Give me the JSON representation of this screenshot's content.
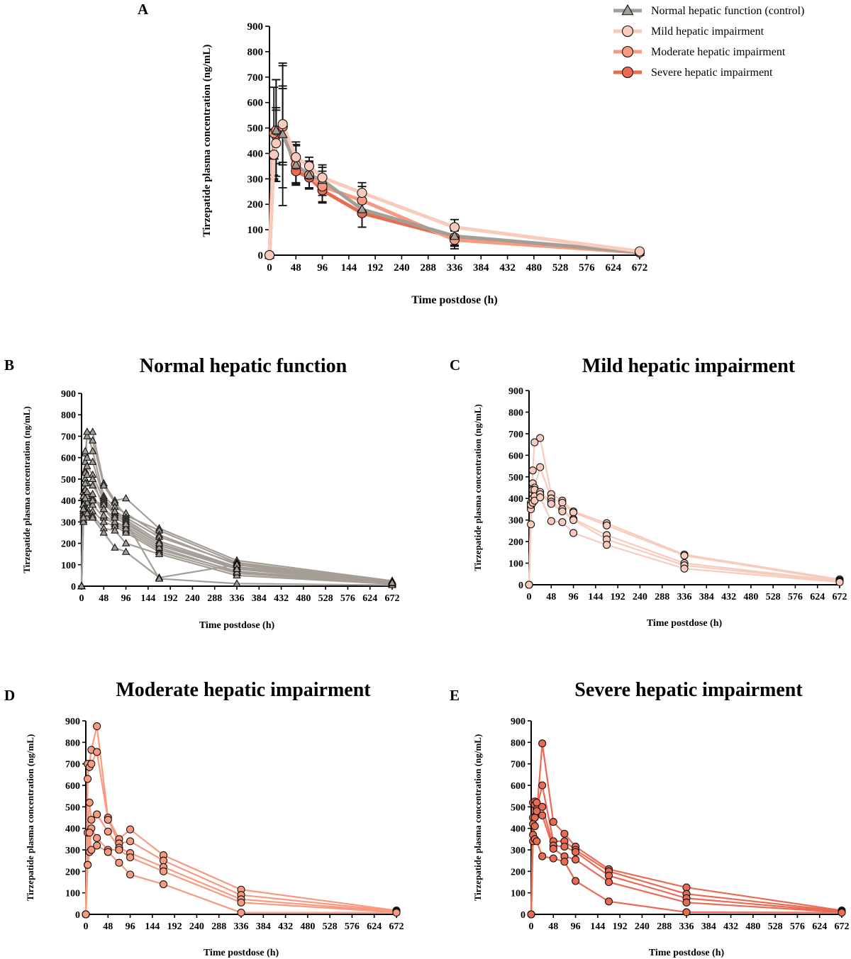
{
  "figure": {
    "colors": {
      "normal": "#a59e97",
      "mild": "#f9cbbd",
      "moderate": "#f79a80",
      "severe": "#ea6b54"
    }
  },
  "chart_data": [
    {
      "letter": "A",
      "type": "line",
      "title": "",
      "xlabel": "Time postdose (h)",
      "ylabel": "Tirzepatide plasma concentration (ng/mL)",
      "xlim": [
        0,
        672
      ],
      "ylim": [
        0,
        900
      ],
      "xticks": [
        0,
        48,
        96,
        144,
        192,
        240,
        288,
        336,
        384,
        432,
        480,
        528,
        576,
        624,
        672
      ],
      "yticks": [
        0,
        100,
        200,
        300,
        400,
        500,
        600,
        700,
        800,
        900
      ],
      "grid": false,
      "legend": "top-right",
      "series": [
        {
          "name": "Normal hepatic function (control)",
          "key": "normal",
          "marker": "triangle",
          "x": [
            0,
            8,
            12,
            24,
            48,
            72,
            96,
            168,
            336,
            672
          ],
          "y": [
            0,
            390,
            490,
            475,
            355,
            315,
            295,
            180,
            75,
            12
          ],
          "err": [
            0,
            90,
            200,
            280,
            80,
            55,
            60,
            70,
            40,
            4
          ]
        },
        {
          "name": "Mild hepatic impairment",
          "key": "mild",
          "marker": "circle",
          "x": [
            0,
            8,
            12,
            24,
            48,
            72,
            96,
            168,
            336,
            672
          ],
          "y": [
            0,
            395,
            440,
            515,
            385,
            350,
            305,
            245,
            110,
            15
          ],
          "err": [
            0,
            100,
            130,
            150,
            60,
            35,
            40,
            40,
            30,
            5
          ]
        },
        {
          "name": "Moderate hepatic impairment",
          "key": "moderate",
          "marker": "circle",
          "x": [
            0,
            8,
            12,
            24,
            48,
            72,
            96,
            168,
            336,
            672
          ],
          "y": [
            0,
            480,
            490,
            505,
            355,
            315,
            270,
            215,
            60,
            10
          ],
          "err": [
            0,
            180,
            200,
            240,
            75,
            50,
            60,
            55,
            35,
            4
          ]
        },
        {
          "name": "Severe hepatic impairment",
          "key": "severe",
          "marker": "circle",
          "x": [
            0,
            8,
            12,
            24,
            48,
            72,
            96,
            168,
            336,
            672
          ],
          "y": [
            0,
            395,
            470,
            505,
            330,
            305,
            255,
            165,
            70,
            10
          ],
          "err": [
            0,
            80,
            110,
            150,
            45,
            40,
            50,
            55,
            30,
            4
          ]
        }
      ]
    },
    {
      "letter": "B",
      "type": "line",
      "title": "Normal hepatic function",
      "xlabel": "Time postdose (h)",
      "ylabel": "Tirzepatide plasma concentration (ng/mL)",
      "xlim": [
        0,
        672
      ],
      "ylim": [
        0,
        900
      ],
      "xticks": [
        0,
        48,
        96,
        144,
        192,
        240,
        288,
        336,
        384,
        432,
        480,
        528,
        576,
        624,
        672
      ],
      "yticks": [
        0,
        100,
        200,
        300,
        400,
        500,
        600,
        700,
        800,
        900
      ],
      "grid": false,
      "color_key": "normal",
      "marker": "triangle",
      "x": [
        0,
        4,
        8,
        12,
        24,
        48,
        72,
        96,
        168,
        336,
        672
      ],
      "subjects": [
        [
          0,
          300,
          540,
          720,
          720,
          480,
          400,
          410,
          270,
          120,
          25
        ],
        [
          0,
          330,
          620,
          700,
          680,
          470,
          390,
          330,
          260,
          110,
          22
        ],
        [
          0,
          380,
          580,
          720,
          630,
          420,
          370,
          340,
          240,
          100,
          20
        ],
        [
          0,
          440,
          630,
          600,
          580,
          410,
          350,
          320,
          230,
          105,
          20
        ],
        [
          0,
          360,
          530,
          560,
          520,
          400,
          340,
          310,
          210,
          90,
          18
        ],
        [
          0,
          420,
          500,
          480,
          470,
          390,
          330,
          300,
          200,
          85,
          15
        ],
        [
          0,
          350,
          450,
          420,
          410,
          360,
          300,
          280,
          190,
          80,
          12
        ],
        [
          0,
          300,
          400,
          390,
          380,
          320,
          290,
          260,
          170,
          70,
          10
        ],
        [
          0,
          380,
          370,
          360,
          350,
          300,
          280,
          250,
          160,
          60,
          12
        ],
        [
          0,
          340,
          360,
          340,
          330,
          270,
          260,
          200,
          150,
          50,
          10
        ],
        [
          0,
          310,
          350,
          320,
          320,
          250,
          180,
          160,
          40,
          100,
          8
        ],
        [
          0,
          300,
          340,
          340,
          400,
          380,
          350,
          300,
          35,
          12,
          5
        ],
        [
          0,
          320,
          410,
          440,
          430,
          330,
          300,
          270,
          180,
          65,
          14
        ],
        [
          0,
          360,
          480,
          520,
          500,
          360,
          320,
          290,
          200,
          80,
          16
        ]
      ]
    },
    {
      "letter": "C",
      "type": "line",
      "title": "Mild hepatic impairment",
      "xlabel": "Time postdose (h)",
      "ylabel": "Tirzepatide plasma concentration (ng/mL)",
      "xlim": [
        0,
        672
      ],
      "ylim": [
        0,
        900
      ],
      "xticks": [
        0,
        48,
        96,
        144,
        192,
        240,
        288,
        336,
        384,
        432,
        480,
        528,
        576,
        624,
        672
      ],
      "yticks": [
        0,
        100,
        200,
        300,
        400,
        500,
        600,
        700,
        800,
        900
      ],
      "grid": false,
      "color_key": "mild",
      "marker": "circle",
      "x": [
        0,
        4,
        8,
        12,
        24,
        48,
        72,
        96,
        168,
        336,
        672
      ],
      "subjects": [
        [
          0,
          280,
          530,
          660,
          680,
          420,
          390,
          340,
          285,
          140,
          25
        ],
        [
          0,
          380,
          470,
          450,
          545,
          400,
          380,
          335,
          275,
          135,
          20
        ],
        [
          0,
          360,
          440,
          440,
          430,
          385,
          350,
          305,
          230,
          100,
          18
        ],
        [
          0,
          350,
          400,
          410,
          420,
          375,
          340,
          300,
          210,
          90,
          15
        ],
        [
          0,
          370,
          380,
          390,
          405,
          295,
          290,
          240,
          185,
          75,
          12
        ]
      ]
    },
    {
      "letter": "D",
      "type": "line",
      "title": "Moderate hepatic impairment",
      "xlabel": "Time postdose (h)",
      "ylabel": "Tirzepatide plasma concentration (ng/mL)",
      "xlim": [
        0,
        672
      ],
      "ylim": [
        0,
        900
      ],
      "xticks": [
        0,
        48,
        96,
        144,
        192,
        240,
        288,
        336,
        384,
        432,
        480,
        528,
        576,
        624,
        672
      ],
      "yticks": [
        0,
        100,
        200,
        300,
        400,
        500,
        600,
        700,
        800,
        900
      ],
      "grid": false,
      "color_key": "moderate",
      "marker": "circle",
      "x": [
        0,
        4,
        8,
        12,
        24,
        48,
        72,
        96,
        168,
        336,
        672
      ],
      "subjects": [
        [
          0,
          630,
          700,
          765,
          875,
          450,
          350,
          395,
          275,
          115,
          18
        ],
        [
          0,
          700,
          685,
          700,
          755,
          440,
          330,
          340,
          250,
          90,
          15
        ],
        [
          0,
          380,
          520,
          440,
          465,
          385,
          310,
          285,
          220,
          70,
          12
        ],
        [
          0,
          230,
          290,
          400,
          355,
          300,
          300,
          265,
          200,
          55,
          10
        ],
        [
          0,
          230,
          380,
          300,
          320,
          290,
          240,
          185,
          140,
          8,
          8
        ]
      ]
    },
    {
      "letter": "E",
      "type": "line",
      "title": "Severe hepatic impairment",
      "xlabel": "Time postdose (h)",
      "ylabel": "Tirzepatide plasma concentration (ng/mL)",
      "xlim": [
        0,
        672
      ],
      "ylim": [
        0,
        900
      ],
      "xticks": [
        0,
        48,
        96,
        144,
        192,
        240,
        288,
        336,
        384,
        432,
        480,
        528,
        576,
        624,
        672
      ],
      "yticks": [
        0,
        100,
        200,
        300,
        400,
        500,
        600,
        700,
        800,
        900
      ],
      "grid": false,
      "color_key": "severe",
      "marker": "circle",
      "x": [
        0,
        4,
        8,
        12,
        24,
        48,
        72,
        96,
        168,
        336,
        672
      ],
      "subjects": [
        [
          0,
          520,
          525,
          470,
          795,
          430,
          375,
          315,
          210,
          125,
          18
        ],
        [
          0,
          450,
          510,
          490,
          600,
          340,
          340,
          300,
          200,
          95,
          15
        ],
        [
          0,
          420,
          450,
          520,
          500,
          320,
          315,
          290,
          180,
          75,
          12
        ],
        [
          0,
          370,
          410,
          480,
          460,
          305,
          270,
          255,
          150,
          55,
          10
        ],
        [
          0,
          340,
          350,
          340,
          270,
          260,
          245,
          155,
          60,
          10,
          8
        ]
      ]
    }
  ]
}
